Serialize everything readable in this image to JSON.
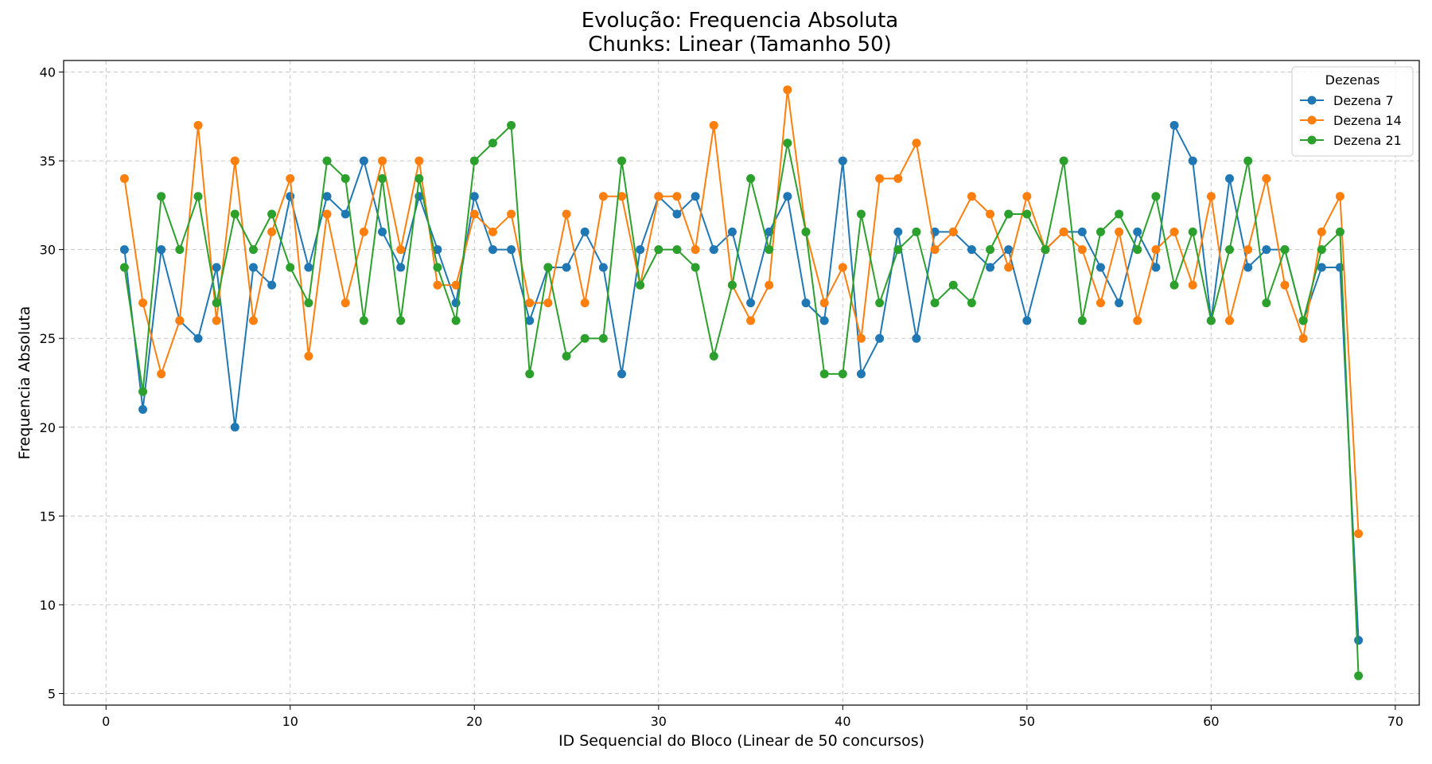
{
  "chart_data": {
    "type": "line",
    "title": "Evolução: Frequencia Absoluta",
    "subtitle": "Chunks: Linear (Tamanho 50)",
    "xlabel": "ID Sequencial do Bloco (Linear de 50 concursos)",
    "ylabel": "Frequencia Absoluta",
    "xlim": [
      -2.3,
      71.3
    ],
    "ylim": [
      4.35,
      40.65
    ],
    "xticks": [
      0,
      10,
      20,
      30,
      40,
      50,
      60,
      70
    ],
    "yticks": [
      5,
      10,
      15,
      20,
      25,
      30,
      35,
      40
    ],
    "grid": true,
    "legend": {
      "title": "Dezenas",
      "placement": "top-right"
    },
    "x": [
      1,
      2,
      3,
      4,
      5,
      6,
      7,
      8,
      9,
      10,
      11,
      12,
      13,
      14,
      15,
      16,
      17,
      18,
      19,
      20,
      21,
      22,
      23,
      24,
      25,
      26,
      27,
      28,
      29,
      30,
      31,
      32,
      33,
      34,
      35,
      36,
      37,
      38,
      39,
      40,
      41,
      42,
      43,
      44,
      45,
      46,
      47,
      48,
      49,
      50,
      51,
      52,
      53,
      54,
      55,
      56,
      57,
      58,
      59,
      60,
      61,
      62,
      63,
      64,
      65,
      66,
      67,
      68
    ],
    "series": [
      {
        "name": "Dezena 7",
        "color": "#1f77b4",
        "values": [
          30,
          21,
          30,
          26,
          25,
          29,
          20,
          29,
          28,
          33,
          29,
          33,
          32,
          35,
          31,
          29,
          33,
          30,
          27,
          33,
          30,
          30,
          26,
          29,
          29,
          31,
          29,
          23,
          30,
          33,
          32,
          33,
          30,
          31,
          27,
          31,
          33,
          27,
          26,
          35,
          23,
          25,
          31,
          25,
          31,
          31,
          30,
          29,
          30,
          26,
          30,
          31,
          31,
          29,
          27,
          31,
          29,
          37,
          35,
          26,
          34,
          29,
          30,
          30,
          26,
          29,
          29,
          8
        ]
      },
      {
        "name": "Dezena 14",
        "color": "#ff7f0e",
        "values": [
          34,
          27,
          23,
          26,
          37,
          26,
          35,
          26,
          31,
          34,
          24,
          32,
          27,
          31,
          35,
          30,
          35,
          28,
          28,
          32,
          31,
          32,
          27,
          27,
          32,
          27,
          33,
          33,
          28,
          33,
          33,
          30,
          37,
          28,
          26,
          28,
          39,
          31,
          27,
          29,
          25,
          34,
          34,
          36,
          30,
          31,
          33,
          32,
          29,
          33,
          30,
          31,
          30,
          27,
          31,
          26,
          30,
          31,
          28,
          33,
          26,
          30,
          34,
          28,
          25,
          31,
          33,
          14
        ]
      },
      {
        "name": "Dezena 21",
        "color": "#2ca02c",
        "values": [
          29,
          22,
          33,
          30,
          33,
          27,
          32,
          30,
          32,
          29,
          27,
          35,
          34,
          26,
          34,
          26,
          34,
          29,
          26,
          35,
          36,
          37,
          23,
          29,
          24,
          25,
          25,
          35,
          28,
          30,
          30,
          29,
          24,
          28,
          34,
          30,
          36,
          31,
          23,
          23,
          32,
          27,
          30,
          31,
          27,
          28,
          27,
          30,
          32,
          32,
          30,
          35,
          26,
          31,
          32,
          30,
          33,
          28,
          31,
          26,
          30,
          35,
          27,
          30,
          26,
          30,
          31,
          6
        ]
      }
    ]
  }
}
